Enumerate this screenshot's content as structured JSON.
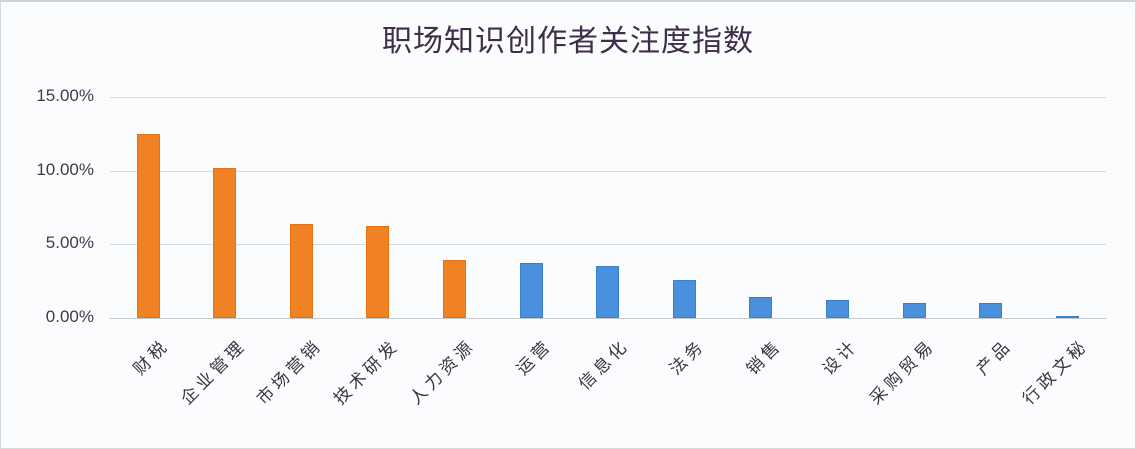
{
  "chart_data": {
    "type": "bar",
    "title": "职场知识创作者关注度指数",
    "xlabel": "",
    "ylabel": "",
    "ylim": [
      0,
      0.15
    ],
    "yticks": [
      "0.00%",
      "5.00%",
      "10.00%",
      "15.00%"
    ],
    "grid": true,
    "legend": null,
    "categories": [
      "财税",
      "企业管理",
      "市场营销",
      "技术研发",
      "人力资源",
      "运营",
      "信息化",
      "法务",
      "销售",
      "设计",
      "采购贸易",
      "产品",
      "行政文秘"
    ],
    "values": [
      0.125,
      0.102,
      0.064,
      0.0625,
      0.0395,
      0.037,
      0.0355,
      0.026,
      0.014,
      0.0125,
      0.01,
      0.01,
      0.0015
    ],
    "bar_colors": [
      "#f08224",
      "#f08224",
      "#f08224",
      "#f08224",
      "#f08224",
      "#4a90dc",
      "#4a90dc",
      "#4a90dc",
      "#4a90dc",
      "#4a90dc",
      "#4a90dc",
      "#4a90dc",
      "#4a90dc"
    ],
    "colors": {
      "highlight": "#f08224",
      "normal": "#4a90dc"
    }
  }
}
